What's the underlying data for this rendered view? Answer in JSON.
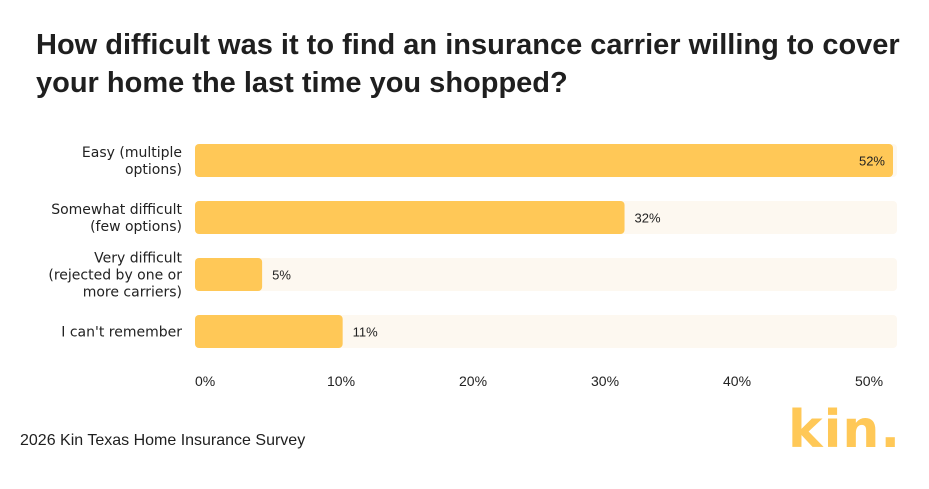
{
  "chart_data": {
    "type": "bar",
    "orientation": "horizontal",
    "title": "How difficult was it to find an insurance carrier willing to cover your home the last time you shopped?",
    "categories": [
      [
        "Easy (multiple",
        "options)"
      ],
      [
        "Somewhat difficult",
        "(few options)"
      ],
      [
        "Very difficult",
        "(rejected by one or",
        "more carriers)"
      ],
      [
        "I can't remember"
      ]
    ],
    "values": [
      52,
      32,
      5,
      11
    ],
    "data_labels": [
      "52%",
      "32%",
      "5%",
      "11%"
    ],
    "xticks": [
      0,
      10,
      20,
      30,
      40,
      50
    ],
    "xtick_labels": [
      "0%",
      "10%",
      "20%",
      "30%",
      "40%",
      "50%"
    ],
    "xlim": [
      0,
      52
    ],
    "grid": false,
    "colors": {
      "bar": "#ffc857",
      "track": "#fdf8f0",
      "text": "#222222"
    }
  },
  "footer": {
    "source": "2026 Kin Texas Home Insurance Survey",
    "logo": "kin."
  }
}
